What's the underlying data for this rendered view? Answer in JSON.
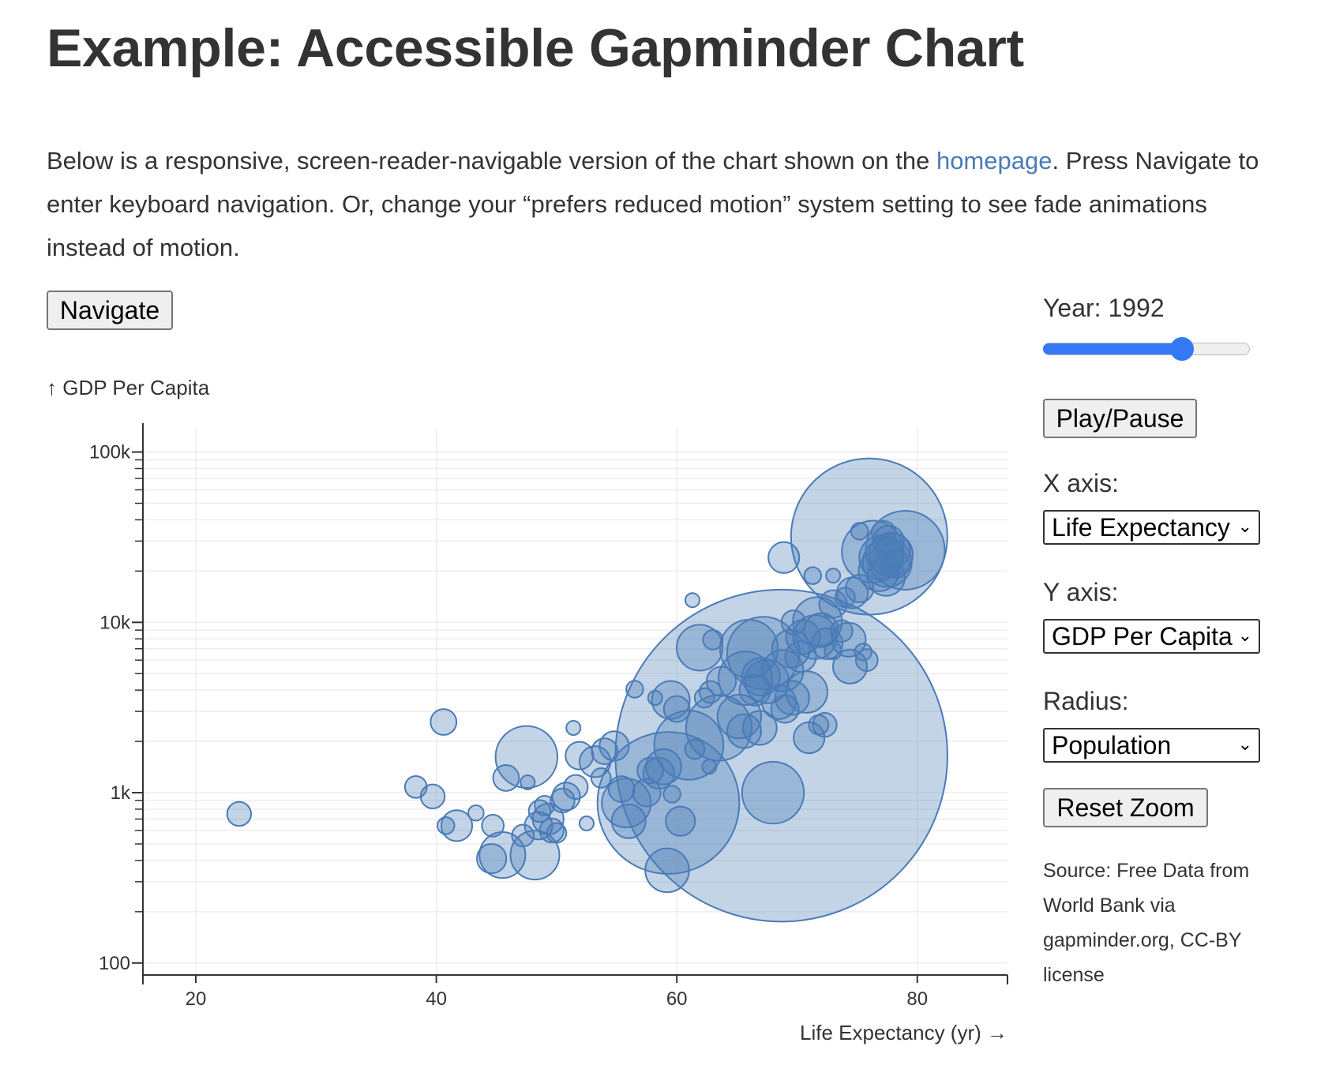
{
  "page": {
    "title": "Example: Accessible Gapminder Chart",
    "intro_before_link": "Below is a responsive, screen-reader-navigable version of the chart shown on the ",
    "intro_link": "homepage",
    "intro_after_link": ". Press Navigate to enter keyboard navigation. Or, change your “prefers reduced motion” system setting to see fade animations instead of motion.",
    "navigate_label": "Navigate"
  },
  "controls": {
    "year_label": "Year: 1992",
    "year_slider_fraction": 0.7,
    "play_pause_label": "Play/Pause",
    "x_axis_label": "X axis:",
    "x_axis_value": "Life Expectancy",
    "y_axis_label": "Y axis:",
    "y_axis_value": "GDP Per Capita",
    "radius_label": "Radius:",
    "radius_value": "Population",
    "reset_zoom_label": "Reset Zoom",
    "source_text": "Source: Free Data from World Bank via gapminder.org, CC-BY license",
    "slider_color": "#3478f6"
  },
  "chart_data": {
    "type": "scatter",
    "ylabel": "↑ GDP Per Capita",
    "xlabel": "Life Expectancy (yr) →",
    "x_ticks": [
      "20",
      "40",
      "60",
      "80"
    ],
    "y_ticks": [
      "100k",
      "10k",
      "1k",
      "100"
    ],
    "xlim": [
      15.6,
      87.5
    ],
    "ylim": [
      85,
      130000
    ],
    "yscale": "log",
    "grid": true,
    "bubble_color": "#4a7bb7",
    "size_encoding": "Population",
    "points": [
      {
        "x": 23.6,
        "y": 750,
        "pop": 6
      },
      {
        "x": 38.3,
        "y": 1080,
        "pop": 5
      },
      {
        "x": 39.7,
        "y": 950,
        "pop": 6
      },
      {
        "x": 40.6,
        "y": 2600,
        "pop": 7
      },
      {
        "x": 40.8,
        "y": 640,
        "pop": 3
      },
      {
        "x": 41.7,
        "y": 640,
        "pop": 10
      },
      {
        "x": 43.3,
        "y": 760,
        "pop": 2.5
      },
      {
        "x": 44.6,
        "y": 410,
        "pop": 9
      },
      {
        "x": 44.7,
        "y": 640,
        "pop": 5
      },
      {
        "x": 45.5,
        "y": 430,
        "pop": 22
      },
      {
        "x": 45.8,
        "y": 1220,
        "pop": 7
      },
      {
        "x": 47.2,
        "y": 560,
        "pop": 5
      },
      {
        "x": 47.5,
        "y": 1620,
        "pop": 40
      },
      {
        "x": 47.6,
        "y": 1150,
        "pop": 2
      },
      {
        "x": 48.2,
        "y": 430,
        "pop": 25
      },
      {
        "x": 48.5,
        "y": 640,
        "pop": 8
      },
      {
        "x": 48.6,
        "y": 780,
        "pop": 5
      },
      {
        "x": 49.0,
        "y": 840,
        "pop": 4
      },
      {
        "x": 49.3,
        "y": 700,
        "pop": 10
      },
      {
        "x": 49.6,
        "y": 600,
        "pop": 6
      },
      {
        "x": 50.0,
        "y": 580,
        "pop": 4
      },
      {
        "x": 50.5,
        "y": 900,
        "pop": 6
      },
      {
        "x": 50.8,
        "y": 950,
        "pop": 8
      },
      {
        "x": 51.4,
        "y": 2400,
        "pop": 1.5
      },
      {
        "x": 51.6,
        "y": 1080,
        "pop": 6
      },
      {
        "x": 51.9,
        "y": 1650,
        "pop": 8
      },
      {
        "x": 52.5,
        "y": 660,
        "pop": 2
      },
      {
        "x": 53.2,
        "y": 1520,
        "pop": 10
      },
      {
        "x": 53.7,
        "y": 1220,
        "pop": 4
      },
      {
        "x": 54.0,
        "y": 1750,
        "pop": 7
      },
      {
        "x": 54.8,
        "y": 1880,
        "pop": 9
      },
      {
        "x": 55.4,
        "y": 1050,
        "pop": 7
      },
      {
        "x": 55.8,
        "y": 870,
        "pop": 25
      },
      {
        "x": 56.0,
        "y": 680,
        "pop": 12
      },
      {
        "x": 56.5,
        "y": 4050,
        "pop": 3
      },
      {
        "x": 57.5,
        "y": 1000,
        "pop": 8
      },
      {
        "x": 57.8,
        "y": 1350,
        "pop": 7
      },
      {
        "x": 58.2,
        "y": 3600,
        "pop": 2
      },
      {
        "x": 58.5,
        "y": 1300,
        "pop": 10
      },
      {
        "x": 58.9,
        "y": 1420,
        "pop": 13
      },
      {
        "x": 59.2,
        "y": 350,
        "pop": 20
      },
      {
        "x": 59.3,
        "y": 870,
        "pop": 210
      },
      {
        "x": 59.5,
        "y": 3500,
        "pop": 15
      },
      {
        "x": 59.6,
        "y": 980,
        "pop": 3
      },
      {
        "x": 60.0,
        "y": 3100,
        "pop": 7
      },
      {
        "x": 60.3,
        "y": 680,
        "pop": 9
      },
      {
        "x": 61.0,
        "y": 1900,
        "pop": 50
      },
      {
        "x": 61.3,
        "y": 13500,
        "pop": 2
      },
      {
        "x": 61.5,
        "y": 1800,
        "pop": 4
      },
      {
        "x": 61.9,
        "y": 7100,
        "pop": 22
      },
      {
        "x": 62.8,
        "y": 3900,
        "pop": 5
      },
      {
        "x": 62.3,
        "y": 3600,
        "pop": 4
      },
      {
        "x": 62.7,
        "y": 1420,
        "pop": 2
      },
      {
        "x": 63.0,
        "y": 7900,
        "pop": 4
      },
      {
        "x": 63.5,
        "y": 2400,
        "pop": 45
      },
      {
        "x": 63.7,
        "y": 4500,
        "pop": 9
      },
      {
        "x": 65.2,
        "y": 2800,
        "pop": 20
      },
      {
        "x": 65.6,
        "y": 2300,
        "pop": 12
      },
      {
        "x": 65.7,
        "y": 4700,
        "pop": 30
      },
      {
        "x": 66.0,
        "y": 7000,
        "pop": 35
      },
      {
        "x": 66.5,
        "y": 4000,
        "pop": 10
      },
      {
        "x": 66.9,
        "y": 2400,
        "pop": 12
      },
      {
        "x": 67.0,
        "y": 4800,
        "pop": 15
      },
      {
        "x": 67.2,
        "y": 6600,
        "pop": 55
      },
      {
        "x": 67.5,
        "y": 4500,
        "pop": 20
      },
      {
        "x": 68.0,
        "y": 1000,
        "pop": 40
      },
      {
        "x": 68.5,
        "y": 3400,
        "pop": 12
      },
      {
        "x": 68.7,
        "y": 1650,
        "pop": 1150
      },
      {
        "x": 68.8,
        "y": 5200,
        "pop": 18
      },
      {
        "x": 68.9,
        "y": 24000,
        "pop": 10
      },
      {
        "x": 69.0,
        "y": 3100,
        "pop": 8
      },
      {
        "x": 69.6,
        "y": 3600,
        "pop": 12
      },
      {
        "x": 69.5,
        "y": 7000,
        "pop": 15
      },
      {
        "x": 69.7,
        "y": 10000,
        "pop": 6
      },
      {
        "x": 70.3,
        "y": 6300,
        "pop": 10
      },
      {
        "x": 70.5,
        "y": 8200,
        "pop": 12
      },
      {
        "x": 70.8,
        "y": 3900,
        "pop": 18
      },
      {
        "x": 71.0,
        "y": 2100,
        "pop": 10
      },
      {
        "x": 71.3,
        "y": 18800,
        "pop": 3
      },
      {
        "x": 71.5,
        "y": 8200,
        "pop": 20
      },
      {
        "x": 71.7,
        "y": 10100,
        "pop": 25
      },
      {
        "x": 71.8,
        "y": 2500,
        "pop": 4
      },
      {
        "x": 72.0,
        "y": 9000,
        "pop": 12
      },
      {
        "x": 72.3,
        "y": 2500,
        "pop": 6
      },
      {
        "x": 72.5,
        "y": 7500,
        "pop": 10
      },
      {
        "x": 73.0,
        "y": 12800,
        "pop": 8
      },
      {
        "x": 73.0,
        "y": 18800,
        "pop": 2
      },
      {
        "x": 73.0,
        "y": 6800,
        "pop": 3
      },
      {
        "x": 73.7,
        "y": 8900,
        "pop": 5
      },
      {
        "x": 74.0,
        "y": 14000,
        "pop": 4
      },
      {
        "x": 74.3,
        "y": 7900,
        "pop": 12
      },
      {
        "x": 74.4,
        "y": 5500,
        "pop": 12
      },
      {
        "x": 74.6,
        "y": 14900,
        "pop": 10
      },
      {
        "x": 75.5,
        "y": 6700,
        "pop": 3
      },
      {
        "x": 75.8,
        "y": 6000,
        "pop": 5
      },
      {
        "x": 75.2,
        "y": 15800,
        "pop": 8
      },
      {
        "x": 75.2,
        "y": 34300,
        "pop": 3
      },
      {
        "x": 76.0,
        "y": 31900,
        "pop": 255
      },
      {
        "x": 76.3,
        "y": 26000,
        "pop": 40
      },
      {
        "x": 76.8,
        "y": 20000,
        "pop": 17
      },
      {
        "x": 77.0,
        "y": 24000,
        "pop": 20
      },
      {
        "x": 77.2,
        "y": 33500,
        "pop": 6
      },
      {
        "x": 77.4,
        "y": 18500,
        "pop": 15
      },
      {
        "x": 77.5,
        "y": 22500,
        "pop": 25
      },
      {
        "x": 77.6,
        "y": 30000,
        "pop": 10
      },
      {
        "x": 77.8,
        "y": 25000,
        "pop": 20
      },
      {
        "x": 78.0,
        "y": 26500,
        "pop": 12
      },
      {
        "x": 78.2,
        "y": 22000,
        "pop": 8
      },
      {
        "x": 79.0,
        "y": 26500,
        "pop": 65
      }
    ]
  }
}
